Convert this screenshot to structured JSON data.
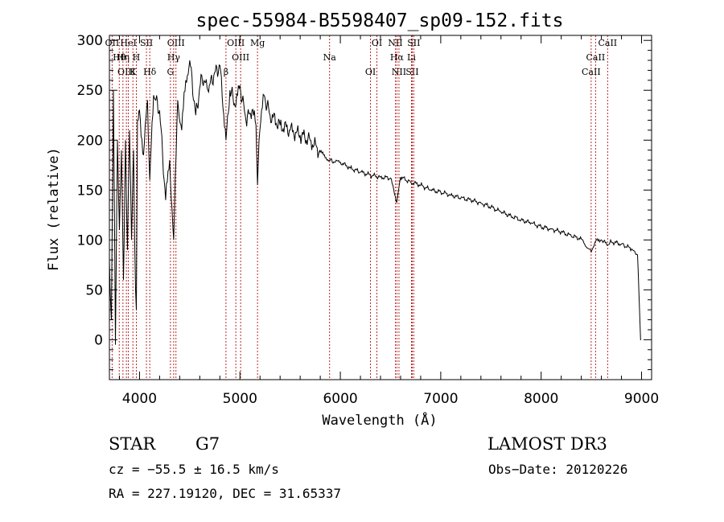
{
  "chart_data": {
    "type": "line",
    "title": "spec-55984-B5598407_sp09-152.fits",
    "xlabel": "Wavelength (Å)",
    "ylabel": "Flux (relative)",
    "xlim": [
      3700,
      9100
    ],
    "ylim": [
      -40,
      305
    ],
    "x_ticks": [
      4000,
      5000,
      6000,
      7000,
      8000,
      9000
    ],
    "y_ticks": [
      0,
      50,
      100,
      150,
      200,
      250,
      300
    ],
    "series": [
      {
        "name": "flux",
        "x": [
          3700,
          3720,
          3740,
          3760,
          3780,
          3800,
          3820,
          3840,
          3860,
          3880,
          3900,
          3920,
          3940,
          3960,
          3968,
          3980,
          4000,
          4040,
          4080,
          4102,
          4140,
          4200,
          4260,
          4300,
          4340,
          4380,
          4420,
          4460,
          4500,
          4560,
          4620,
          4680,
          4740,
          4800,
          4861,
          4900,
          4960,
          5000,
          5060,
          5120,
          5160,
          5175,
          5190,
          5240,
          5300,
          5400,
          5500,
          5600,
          5700,
          5800,
          5890,
          5950,
          6000,
          6100,
          6200,
          6300,
          6400,
          6500,
          6563,
          6600,
          6700,
          6800,
          6900,
          7000,
          7100,
          7200,
          7300,
          7400,
          7500,
          7600,
          7700,
          7800,
          7900,
          8000,
          8100,
          8200,
          8300,
          8400,
          8498,
          8542,
          8600,
          8662,
          8700,
          8800,
          8900,
          8960,
          8980,
          8990,
          8995
        ],
        "values": [
          80,
          20,
          250,
          -5,
          200,
          110,
          190,
          60,
          200,
          90,
          210,
          100,
          190,
          50,
          30,
          220,
          230,
          185,
          240,
          160,
          245,
          230,
          140,
          180,
          100,
          240,
          210,
          260,
          280,
          225,
          265,
          250,
          265,
          275,
          200,
          250,
          235,
          255,
          220,
          230,
          215,
          155,
          200,
          245,
          225,
          215,
          210,
          205,
          200,
          188,
          180,
          178,
          178,
          172,
          168,
          165,
          163,
          162,
          138,
          163,
          158,
          155,
          150,
          148,
          145,
          142,
          140,
          137,
          133,
          128,
          124,
          120,
          117,
          113,
          111,
          108,
          104,
          101,
          88,
          99,
          100,
          95,
          98,
          96,
          91,
          85,
          30,
          0,
          0
        ]
      }
    ],
    "spectral_lines": [
      {
        "label": "OII",
        "lambda": 3727
      },
      {
        "label": "Hθ",
        "lambda": 3798
      },
      {
        "label": "OIII",
        "lambda": 3869
      },
      {
        "label": "HeI",
        "lambda": 3889
      },
      {
        "label": "Hη",
        "lambda": 3835
      },
      {
        "label": "K",
        "lambda": 3934
      },
      {
        "label": "SII",
        "lambda": 4069
      },
      {
        "label": "H",
        "lambda": 3968
      },
      {
        "label": "Hδ",
        "lambda": 4102
      },
      {
        "label": "OIII",
        "lambda": 4363
      },
      {
        "label": "Hγ",
        "lambda": 4340
      },
      {
        "label": "G",
        "lambda": 4308
      },
      {
        "label": "OIII",
        "lambda": 4959
      },
      {
        "label": "OIII",
        "lambda": 5007
      },
      {
        "label": "β",
        "lambda": 4861
      },
      {
        "label": "Mg",
        "lambda": 5175
      },
      {
        "label": "Na",
        "lambda": 5893
      },
      {
        "label": "OI",
        "lambda": 6300
      },
      {
        "label": "OI",
        "lambda": 6364
      },
      {
        "label": "Hα",
        "lambda": 6563
      },
      {
        "label": "SII",
        "lambda": 6716
      },
      {
        "label": "NII",
        "lambda": 6548
      },
      {
        "label": "Li",
        "lambda": 6708
      },
      {
        "label": "NII",
        "lambda": 6584
      },
      {
        "label": "SII",
        "lambda": 6731
      },
      {
        "label": "CaII",
        "lambda": 8542
      },
      {
        "label": "CaII",
        "lambda": 8498
      },
      {
        "label": "CaII",
        "lambda": 8662
      }
    ]
  },
  "info": {
    "class": "STAR",
    "subclass": "G7",
    "survey": "LAMOST DR3",
    "cz": "cz = −55.5 ± 16.5 km/s",
    "obs_date": "Obs−Date: 20120226",
    "radec": "RA = 227.19120, DEC =  31.65337"
  }
}
